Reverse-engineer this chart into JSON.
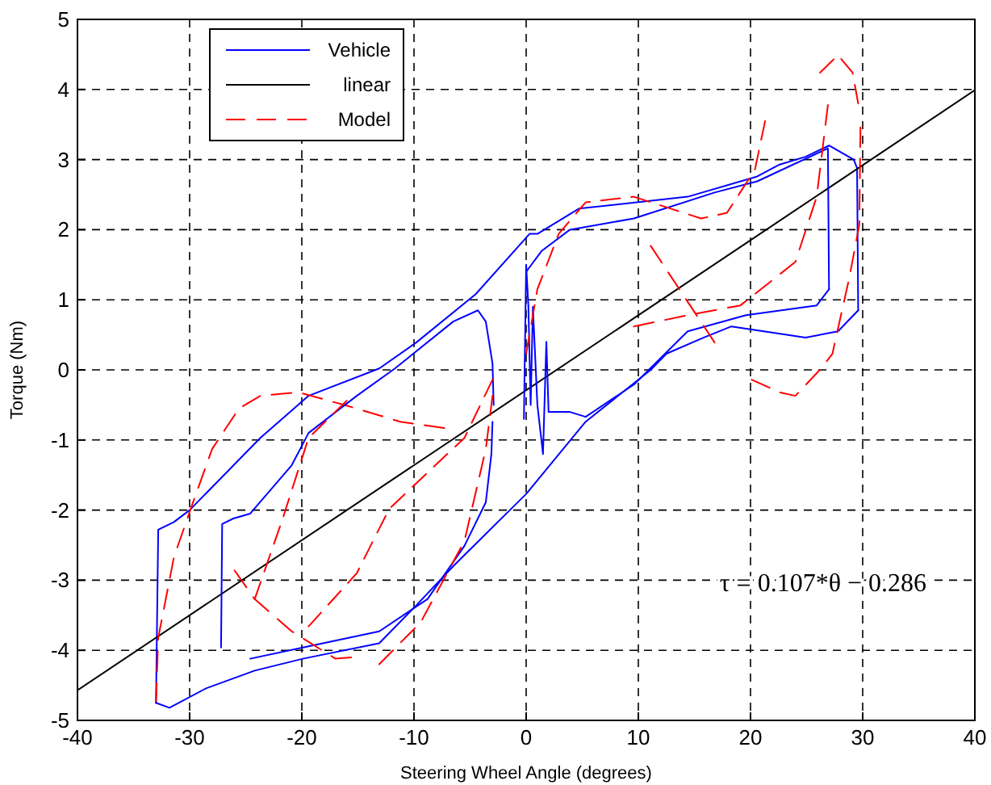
{
  "chart_data": {
    "type": "line",
    "xlabel": "Steering Wheel Angle (degrees)",
    "ylabel": "Torque (Nm)",
    "xlim": [
      -40,
      40
    ],
    "ylim": [
      -5,
      5
    ],
    "xticks": [
      -40,
      -30,
      -20,
      -10,
      0,
      10,
      20,
      30,
      40
    ],
    "yticks": [
      -5,
      -4,
      -3,
      -2,
      -1,
      0,
      1,
      2,
      3,
      4,
      5
    ],
    "grid": true,
    "legend": "top left",
    "annotations": [
      "τ = 0.107*θ − 0.286"
    ],
    "series": [
      {
        "name": "Vehicle",
        "color": "#0000ff",
        "line_style": "solid",
        "x": [
          -33,
          -32.8,
          -31.4,
          -30,
          -23.7,
          -19.4,
          -13.1,
          -9.8,
          -4.5,
          0.3,
          1,
          4.7,
          14.4,
          20.6,
          22.6,
          24.9,
          27,
          29.2,
          29.5,
          29.6
        ],
        "values": [
          -4.75,
          -2.28,
          -2.17,
          -2,
          -0.97,
          -0.37,
          0.02,
          0.39,
          1.08,
          1.94,
          1.94,
          2.3,
          2.47,
          2.76,
          2.93,
          3.04,
          3.2,
          3,
          2.88,
          0.85
        ]
      },
      {
        "name": "linear",
        "color": "#000000",
        "line_style": "solid",
        "x": [
          -40,
          40
        ],
        "values": [
          -4.57,
          3.99
        ]
      },
      {
        "name": "Model",
        "color": "#ff0000",
        "line_style": "dashed",
        "x": [
          -33,
          -32.8,
          -31.4,
          -29.9,
          -28,
          -25.6,
          -23.7,
          -20.3,
          -16,
          -11.2,
          -7.3
        ],
        "values": [
          -4.75,
          -3.82,
          -2.67,
          -1.98,
          -1.13,
          -0.55,
          -0.37,
          -0.32,
          -0.51,
          -0.74,
          -0.83
        ]
      },
      {
        "color": "#0000ff",
        "line_style": "solid",
        "x": [
          29.6,
          27.8,
          24.9,
          18.3,
          15.8,
          12.5,
          11.1,
          5.3,
          0,
          -6.5,
          -9.8,
          -13.1,
          -19.9,
          -24.2,
          -28.5,
          -31.8,
          -33
        ],
        "values": [
          0.85,
          0.55,
          0.46,
          0.62,
          0.46,
          0.23,
          0,
          -0.74,
          -1.77,
          -2.8,
          -3.36,
          -3.9,
          -4.12,
          -4.29,
          -4.54,
          -4.82,
          -4.75
        ]
      },
      {
        "color": "#0000ff",
        "line_style": "solid",
        "x": [
          -27.2,
          -27.1,
          -26.1,
          -24.6,
          -20.9,
          -19.4,
          -15.1,
          -11.7,
          -6.5,
          -4.3,
          -3.6,
          -3,
          -2.9
        ],
        "values": [
          -3.96,
          -2.2,
          -2.12,
          -2.05,
          -1.36,
          -0.9,
          -0.37,
          0.02,
          0.69,
          0.85,
          0.69,
          0.09,
          -0.5
        ]
      },
      {
        "color": "#0000ff",
        "line_style": "solid",
        "x": [
          -3,
          -3.1,
          -3.6,
          -5.5,
          -8.8,
          -13.1,
          -19.9,
          -24.6
        ],
        "values": [
          -0.74,
          -1.2,
          -1.89,
          -2.51,
          -3.27,
          -3.73,
          -3.96,
          -4.12
        ]
      },
      {
        "color": "#0000ff",
        "line_style": "solid",
        "x": [
          0,
          1.4,
          3.9,
          9.6,
          16.8,
          20.6,
          26.9,
          27
        ],
        "values": [
          1.4,
          1.7,
          2,
          2.16,
          2.53,
          2.69,
          3.16,
          1.15
        ]
      },
      {
        "color": "#0000ff",
        "line_style": "solid",
        "x": [
          27,
          25.9,
          19.6,
          14.4,
          9.6,
          5.3,
          3.9,
          2
        ],
        "values": [
          1.15,
          0.92,
          0.78,
          0.55,
          -0.21,
          -0.67,
          -0.6,
          -0.6
        ]
      },
      {
        "color": "#0000ff",
        "line_style": "solid",
        "x": [
          2,
          1.8,
          1.5,
          1,
          0.6,
          0.4,
          0.2,
          0,
          -0.2
        ],
        "values": [
          -0.6,
          0.4,
          -1.2,
          -0.5,
          0.9,
          -0.5,
          0.9,
          1.5,
          -0.7
        ]
      },
      {
        "color": "#ff0000",
        "line_style": "dashed",
        "x": [
          -26,
          -24.2,
          -20.9,
          -17,
          -15.6
        ],
        "values": [
          -2.86,
          -3.27,
          -3.73,
          -4.12,
          -4.1
        ]
      },
      {
        "color": "#ff0000",
        "line_style": "dashed",
        "x": [
          -24.2,
          -21.7,
          -19.4,
          -16
        ],
        "values": [
          -3.27,
          -2.12,
          -0.97,
          -0.44
        ]
      },
      {
        "color": "#ff0000",
        "line_style": "dashed",
        "x": [
          -19.4,
          -15.1,
          -12.2,
          -5.5,
          -3
        ],
        "values": [
          -3.66,
          -2.9,
          -1.98,
          -0.97,
          -0.14
        ]
      },
      {
        "color": "#ff0000",
        "line_style": "dashed",
        "x": [
          -13.1,
          -9.4,
          -5.5,
          -3.6,
          -3
        ],
        "values": [
          -4.2,
          -3.6,
          -2.44,
          -1.13,
          -0.37
        ]
      },
      {
        "color": "#ff0000",
        "line_style": "dashed",
        "x": [
          20.1,
          22.6,
          24,
          26.3,
          27.3,
          28.8,
          29.7,
          29.8
        ],
        "values": [
          -0.14,
          -0.32,
          -0.37,
          0.02,
          0.23,
          1.31,
          2.07,
          3.46
        ]
      },
      {
        "color": "#ff0000",
        "line_style": "dashed",
        "x": [
          29.6,
          29.1,
          27.8,
          26.2
        ],
        "values": [
          3.8,
          4.24,
          4.49,
          4.24
        ]
      },
      {
        "color": "#ff0000",
        "line_style": "dashed",
        "x": [
          21.3,
          20.4,
          17.9,
          15.6,
          9.6,
          5.3,
          2.9,
          1,
          0
        ],
        "values": [
          3.55,
          2.86,
          2.24,
          2.16,
          2.47,
          2.39,
          1.94,
          1.15,
          0.23
        ]
      },
      {
        "color": "#ff0000",
        "line_style": "dashed",
        "x": [
          26.9,
          25.9,
          24,
          19.1,
          14.4,
          9.6
        ],
        "values": [
          3.78,
          2.47,
          1.54,
          0.92,
          0.78,
          0.62
        ]
      },
      {
        "color": "#ff0000",
        "line_style": "dashed",
        "x": [
          11.1,
          16.8
        ],
        "values": [
          1.77,
          0.39
        ]
      }
    ]
  }
}
